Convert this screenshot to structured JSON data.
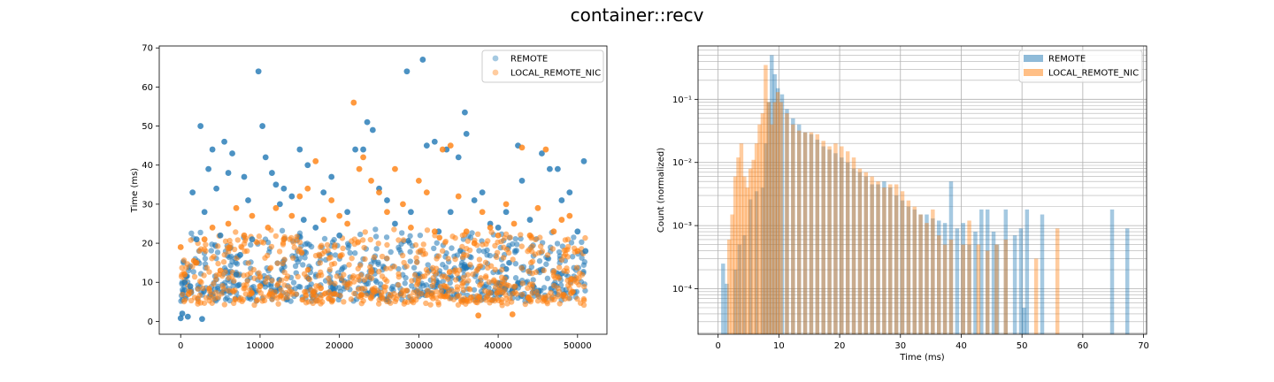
{
  "figure": {
    "suptitle": "container::recv"
  },
  "colors": {
    "remote": "#1f77b4",
    "local": "#ff7f0e"
  },
  "chart_data": [
    {
      "type": "scatter",
      "title": "",
      "xlabel": "",
      "ylabel": "Time (ms)",
      "xlim": [
        -2700,
        53700
      ],
      "ylim": [
        -3.3,
        70.5
      ],
      "xticks": [
        0,
        10000,
        20000,
        30000,
        40000,
        50000
      ],
      "yticks": [
        0,
        10,
        20,
        30,
        40,
        50,
        60,
        70
      ],
      "legend_position": "top-right",
      "grid": false,
      "series": [
        {
          "name": "REMOTE",
          "color": "#1f77b4",
          "alpha": 0.4,
          "points": [
            [
              0,
              0.8
            ],
            [
              200,
              2
            ],
            [
              500,
              10
            ],
            [
              700,
              11.5
            ],
            [
              900,
              1.2
            ],
            [
              1200,
              9
            ],
            [
              1500,
              33
            ],
            [
              2000,
              21
            ],
            [
              2500,
              50
            ],
            [
              2700,
              0.6
            ],
            [
              3000,
              28
            ],
            [
              3500,
              39
            ],
            [
              4000,
              44
            ],
            [
              4500,
              34
            ],
            [
              5000,
              22
            ],
            [
              5500,
              46
            ],
            [
              6000,
              38
            ],
            [
              6500,
              43
            ],
            [
              7000,
              12
            ],
            [
              7500,
              17
            ],
            [
              8000,
              37
            ],
            [
              8500,
              31
            ],
            [
              9000,
              21
            ],
            [
              9800,
              64
            ],
            [
              10300,
              50
            ],
            [
              10700,
              42
            ],
            [
              11500,
              38
            ],
            [
              12000,
              35
            ],
            [
              12500,
              30
            ],
            [
              13000,
              34
            ],
            [
              14000,
              32
            ],
            [
              15000,
              44
            ],
            [
              15500,
              26
            ],
            [
              16000,
              40
            ],
            [
              17000,
              24
            ],
            [
              18000,
              33
            ],
            [
              19000,
              37
            ],
            [
              20000,
              22
            ],
            [
              21000,
              28
            ],
            [
              22000,
              44
            ],
            [
              23000,
              44
            ],
            [
              23500,
              51
            ],
            [
              24200,
              49
            ],
            [
              25000,
              34
            ],
            [
              26000,
              31
            ],
            [
              27000,
              25
            ],
            [
              28500,
              64
            ],
            [
              29000,
              28
            ],
            [
              30500,
              67
            ],
            [
              31000,
              45
            ],
            [
              32000,
              46
            ],
            [
              32500,
              23
            ],
            [
              33500,
              44
            ],
            [
              34000,
              28
            ],
            [
              35000,
              42
            ],
            [
              35800,
              53.5
            ],
            [
              36000,
              48
            ],
            [
              37000,
              31
            ],
            [
              38000,
              33
            ],
            [
              39000,
              25
            ],
            [
              40000,
              24
            ],
            [
              41000,
              28
            ],
            [
              42500,
              45
            ],
            [
              43000,
              36
            ],
            [
              44000,
              26
            ],
            [
              45500,
              43
            ],
            [
              46500,
              39
            ],
            [
              47500,
              39
            ],
            [
              48000,
              31
            ],
            [
              49000,
              33
            ],
            [
              50000,
              23
            ],
            [
              50800,
              41
            ],
            [
              51000,
              18
            ]
          ]
        },
        {
          "name": "LOCAL_REMOTE_NIC",
          "color": "#ff7f0e",
          "alpha": 0.4,
          "points": [
            [
              0,
              19
            ],
            [
              500,
              12
            ],
            [
              1000,
              7
            ],
            [
              2000,
              15
            ],
            [
              3000,
              21
            ],
            [
              4000,
              24
            ],
            [
              5000,
              13
            ],
            [
              6000,
              25
            ],
            [
              7000,
              29
            ],
            [
              8000,
              22
            ],
            [
              9000,
              27
            ],
            [
              10000,
              9
            ],
            [
              11000,
              24
            ],
            [
              12000,
              29
            ],
            [
              13000,
              21
            ],
            [
              14000,
              27
            ],
            [
              15000,
              32
            ],
            [
              16000,
              34
            ],
            [
              17000,
              41
            ],
            [
              18000,
              26
            ],
            [
              19000,
              31
            ],
            [
              20000,
              27
            ],
            [
              21000,
              25
            ],
            [
              21800,
              56
            ],
            [
              22500,
              39
            ],
            [
              23000,
              42
            ],
            [
              24000,
              36
            ],
            [
              25000,
              33
            ],
            [
              26000,
              28
            ],
            [
              27000,
              39
            ],
            [
              28000,
              30
            ],
            [
              29000,
              24
            ],
            [
              30000,
              36
            ],
            [
              31000,
              33
            ],
            [
              32000,
              23
            ],
            [
              33000,
              44
            ],
            [
              34000,
              45
            ],
            [
              35000,
              32
            ],
            [
              36000,
              23
            ],
            [
              37000,
              20
            ],
            [
              37500,
              1.5
            ],
            [
              38000,
              28
            ],
            [
              39000,
              24
            ],
            [
              40000,
              22
            ],
            [
              41000,
              30
            ],
            [
              41800,
              1.8
            ],
            [
              42000,
              25
            ],
            [
              43000,
              44.5
            ],
            [
              44000,
              22
            ],
            [
              45000,
              29
            ],
            [
              46000,
              44
            ],
            [
              47000,
              23
            ],
            [
              48000,
              26
            ],
            [
              49000,
              27
            ],
            [
              50000,
              18
            ]
          ]
        }
      ]
    },
    {
      "type": "bar",
      "title": "",
      "xlabel": "Time (ms)",
      "ylabel": "Count (normalized)",
      "yscale": "log",
      "xlim": [
        -3.3,
        70.5
      ],
      "ylim": [
        1.9e-05,
        0.7
      ],
      "xticks": [
        0,
        10,
        20,
        30,
        40,
        50,
        60,
        70
      ],
      "ytick_labels": [
        "10⁻⁴",
        "10⁻³",
        "10⁻²",
        "10⁻¹"
      ],
      "yticks": [
        0.0001,
        0.001,
        0.01,
        0.1
      ],
      "legend_position": "top-right",
      "grid": true,
      "series": [
        {
          "name": "REMOTE",
          "color": "#1f77b4",
          "alpha": 0.4,
          "bars": [
            [
              0.5,
              0.00025
            ],
            [
              1.1,
              0.00012
            ],
            [
              2.5,
              0.0002
            ],
            [
              3.2,
              0.0005
            ],
            [
              4.0,
              0.0007
            ],
            [
              5.0,
              0.0026
            ],
            [
              6.0,
              0.0035
            ],
            [
              7.0,
              0.004
            ],
            [
              7.5,
              0.02
            ],
            [
              8.0,
              0.09
            ],
            [
              8.5,
              0.5
            ],
            [
              9.0,
              0.25
            ],
            [
              9.5,
              0.15
            ],
            [
              10.2,
              0.12
            ],
            [
              11.0,
              0.07
            ],
            [
              12.0,
              0.05
            ],
            [
              13.0,
              0.04
            ],
            [
              14.0,
              0.03
            ],
            [
              15.0,
              0.028
            ],
            [
              16.0,
              0.023
            ],
            [
              17.0,
              0.018
            ],
            [
              18.0,
              0.016
            ],
            [
              19.0,
              0.014
            ],
            [
              20.0,
              0.012
            ],
            [
              21.0,
              0.01
            ],
            [
              22.0,
              0.008
            ],
            [
              23.0,
              0.007
            ],
            [
              24.0,
              0.006
            ],
            [
              25.0,
              0.0045
            ],
            [
              26.0,
              0.0045
            ],
            [
              27.0,
              0.005
            ],
            [
              28.0,
              0.004
            ],
            [
              29.0,
              0.003
            ],
            [
              30.0,
              0.0025
            ],
            [
              31.0,
              0.002
            ],
            [
              32.0,
              0.0018
            ],
            [
              33.0,
              0.0015
            ],
            [
              34.0,
              0.0015
            ],
            [
              35.0,
              0.0013
            ],
            [
              36.0,
              0.0012
            ],
            [
              37.0,
              0.0011
            ],
            [
              38.0,
              0.005
            ],
            [
              39.0,
              0.0009
            ],
            [
              40.0,
              0.0011
            ],
            [
              41.0,
              0.0005
            ],
            [
              42.0,
              0.0008
            ],
            [
              43.0,
              0.0018
            ],
            [
              44.0,
              0.0018
            ],
            [
              45.0,
              0.0008
            ],
            [
              45.6,
              0.0005
            ],
            [
              47.0,
              0.0018
            ],
            [
              48.5,
              0.0007
            ],
            [
              49.5,
              0.0009
            ],
            [
              50.0,
              5e-05
            ],
            [
              50.5,
              0.0018
            ],
            [
              53.0,
              0.0015
            ],
            [
              64.5,
              0.0018
            ],
            [
              67.0,
              0.0009
            ]
          ]
        },
        {
          "name": "LOCAL_REMOTE_NIC",
          "color": "#ff7f0e",
          "alpha": 0.4,
          "bars": [
            [
              1.5,
              0.0006
            ],
            [
              2.0,
              0.0015
            ],
            [
              2.5,
              0.006
            ],
            [
              3.0,
              0.012
            ],
            [
              3.5,
              0.02
            ],
            [
              4.0,
              0.006
            ],
            [
              4.5,
              0.004
            ],
            [
              5.0,
              0.008
            ],
            [
              5.5,
              0.011
            ],
            [
              6.0,
              0.02
            ],
            [
              6.5,
              0.04
            ],
            [
              7.0,
              0.06
            ],
            [
              7.5,
              0.35
            ],
            [
              8.0,
              0.09
            ],
            [
              8.5,
              0.04
            ],
            [
              9.0,
              0.09
            ],
            [
              9.5,
              0.13
            ],
            [
              10.0,
              0.09
            ],
            [
              11.0,
              0.06
            ],
            [
              12.0,
              0.04
            ],
            [
              13.0,
              0.032
            ],
            [
              14.0,
              0.03
            ],
            [
              15.0,
              0.03
            ],
            [
              16.0,
              0.028
            ],
            [
              17.0,
              0.022
            ],
            [
              18.0,
              0.018
            ],
            [
              19.0,
              0.02
            ],
            [
              20.0,
              0.018
            ],
            [
              21.0,
              0.015
            ],
            [
              22.0,
              0.012
            ],
            [
              23.0,
              0.008
            ],
            [
              24.0,
              0.007
            ],
            [
              25.0,
              0.006
            ],
            [
              26.0,
              0.005
            ],
            [
              27.0,
              0.004
            ],
            [
              28.0,
              0.0045
            ],
            [
              29.0,
              0.0045
            ],
            [
              30.0,
              0.0035
            ],
            [
              31.0,
              0.0025
            ],
            [
              32.0,
              0.002
            ],
            [
              33.0,
              0.0015
            ],
            [
              34.0,
              0.0011
            ],
            [
              35.0,
              0.0018
            ],
            [
              36.0,
              0.0007
            ],
            [
              37.0,
              0.0005
            ],
            [
              38.0,
              0.0006
            ],
            [
              40.0,
              0.0005
            ],
            [
              41.0,
              0.0012
            ],
            [
              42.5,
              0.0005
            ],
            [
              44.0,
              0.0004
            ],
            [
              45.5,
              0.0005
            ],
            [
              47.0,
              0.0006
            ],
            [
              52.0,
              0.0003
            ],
            [
              55.5,
              0.0009
            ]
          ]
        }
      ]
    }
  ]
}
